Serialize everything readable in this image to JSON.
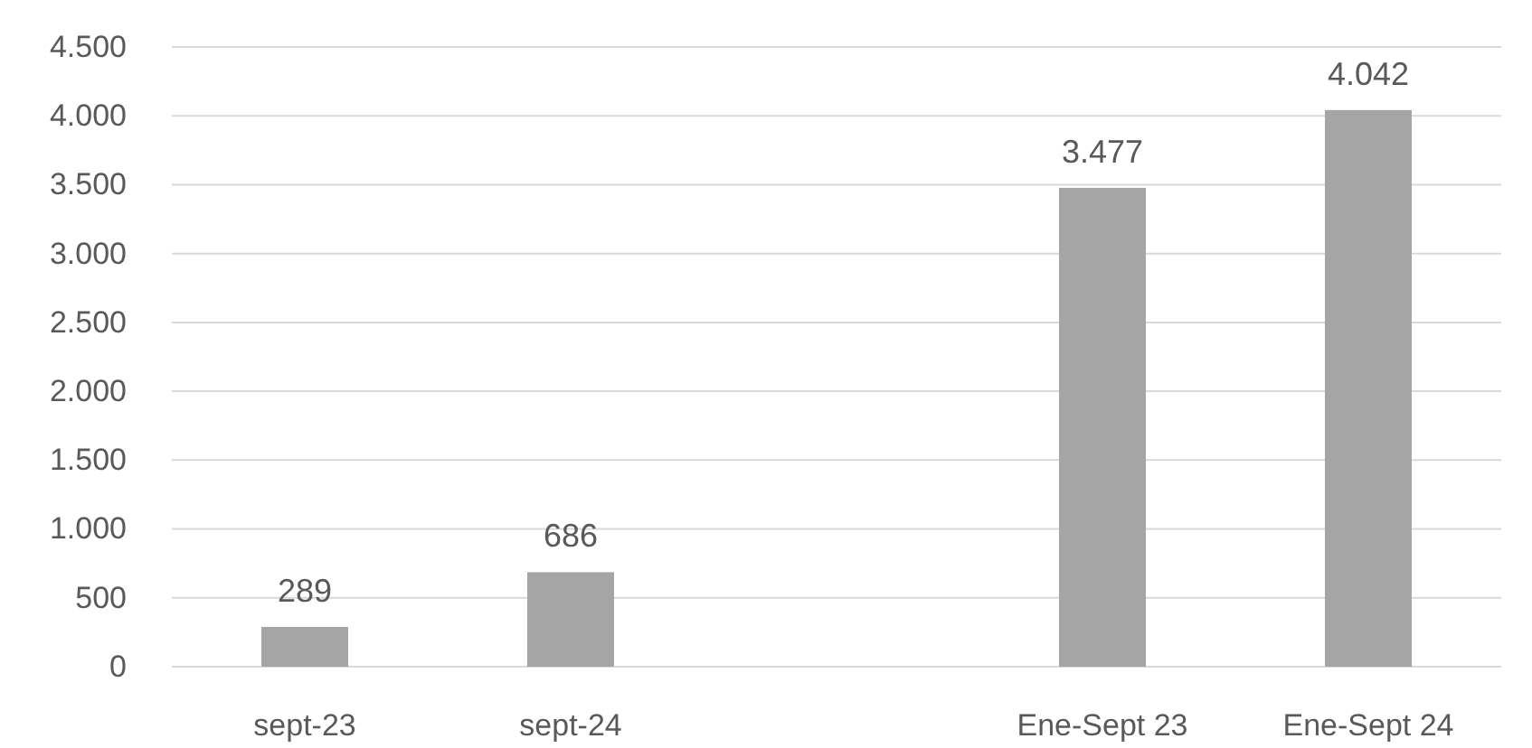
{
  "chart_data": {
    "type": "bar",
    "categories": [
      "sept-23",
      "sept-24",
      null,
      "Ene-Sept 23",
      "Ene-Sept 24"
    ],
    "values": [
      289,
      686,
      null,
      3477,
      4042
    ],
    "value_labels": [
      "289",
      "686",
      null,
      "3.477",
      "4.042"
    ],
    "color": "#a5a5a5",
    "ylim": [
      0,
      4500
    ],
    "yticks": [
      0,
      500,
      {
        "value": 1000,
        "label": "1.000"
      },
      {
        "value": 1500,
        "label": "1.500"
      },
      {
        "value": 2000,
        "label": "2.000"
      },
      {
        "value": 2500,
        "label": "2.500"
      },
      {
        "value": 3000,
        "label": "3.000"
      },
      {
        "value": 3500,
        "label": "3.500"
      },
      {
        "value": 4000,
        "label": "4.000"
      },
      {
        "value": 4500,
        "label": "4.500"
      }
    ],
    "grid": "y"
  }
}
